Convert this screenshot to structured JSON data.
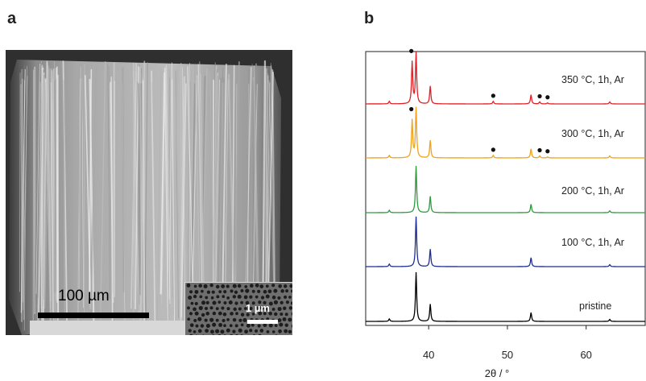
{
  "panels": {
    "a_label": "a",
    "b_label": "b"
  },
  "sem_image": {
    "scale_bar_main": "100 µm",
    "scale_bar_inset": "1 µm"
  },
  "chart_data": {
    "type": "line",
    "xlabel": "2θ / °",
    "ylabel": "",
    "xlim": [
      32,
      67.5
    ],
    "x_ticks": [
      40,
      50,
      60
    ],
    "y_ticks": [],
    "grid": false,
    "legend": "none",
    "peaks": [
      {
        "position": 35.0,
        "relative_intensity": 0.05
      },
      {
        "position": 38.4,
        "relative_intensity": 1.0
      },
      {
        "position": 40.2,
        "relative_intensity": 0.35
      },
      {
        "position": 53.0,
        "relative_intensity": 0.18
      },
      {
        "position": 63.0,
        "relative_intensity": 0.04
      }
    ],
    "series": [
      {
        "name": "pristine",
        "color": "#000000",
        "extra_peaks": []
      },
      {
        "name": "100 °C, 1h, Ar",
        "color": "#1f2f8f",
        "extra_peaks": []
      },
      {
        "name": "200 °C, 1h, Ar",
        "color": "#2e9a3e",
        "extra_peaks": []
      },
      {
        "name": "300 °C, 1h, Ar",
        "color": "#f0a21b",
        "extra_peaks": [
          {
            "position": 37.9,
            "relative_intensity": 0.75
          },
          {
            "position": 48.2,
            "relative_intensity": 0.05
          },
          {
            "position": 54.1,
            "relative_intensity": 0.04
          },
          {
            "position": 55.1,
            "relative_intensity": 0.02
          }
        ],
        "markers": [
          37.9,
          48.2,
          54.1,
          55.1
        ]
      },
      {
        "name": "350 °C, 1h, Ar",
        "color": "#e02027",
        "extra_peaks": [
          {
            "position": 37.9,
            "relative_intensity": 0.82
          },
          {
            "position": 48.2,
            "relative_intensity": 0.05
          },
          {
            "position": 54.1,
            "relative_intensity": 0.04
          },
          {
            "position": 55.1,
            "relative_intensity": 0.02
          }
        ],
        "markers": [
          37.9,
          48.2,
          54.1,
          55.1
        ]
      }
    ]
  }
}
